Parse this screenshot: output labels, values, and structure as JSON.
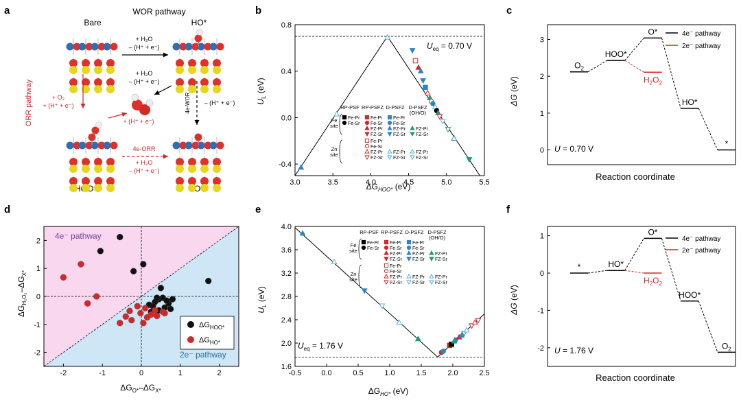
{
  "panels": {
    "a": "a",
    "b": "b",
    "c": "c",
    "d": "d",
    "e": "e",
    "f": "f"
  },
  "panel_a": {
    "bare": "Bare",
    "wor_pathway": "WOR pathway",
    "ho_star": "HO*",
    "orr_pathway": "ORR pathway",
    "hoo_star": "HOO*",
    "o_star": "O*",
    "step1_a": "+ H₂O",
    "step1_b": "– (H⁺ + e⁻)",
    "step2_a": "+ H₂O",
    "step2_b": "– (H⁺ + e⁻)",
    "orr_a": "+ O₂",
    "orr_b": "+ (H⁺ + e⁻)",
    "hplus": "+ (H⁺ + e⁻)",
    "wor4e": "4e-WOR",
    "wor4e_b": "– (H⁺ + e⁻)",
    "orr4e": "4e-ORR",
    "orr4e_a": "+ H₂O",
    "orr4e_b": "– (H⁺ + e⁻)"
  },
  "legend_common": {
    "cols": [
      "RP-PSF",
      "RP-PSFZ",
      "D-PSFZ",
      "D-PSFZ (OH/O)"
    ],
    "fe_site": "Fe site",
    "zn_site": "Zn site",
    "fe_pr": "Fe-Pr",
    "fe_sr": "Fe-Sr",
    "fz_pr": "FZ-Pr",
    "fz_sr": "FZ-Sr"
  },
  "chart_data": [
    {
      "id": "b",
      "type": "scatter",
      "title": "",
      "xlabel": "ΔG",
      "xlabel_sub": "HOO*",
      "xlabel_unit": "(eV)",
      "ylabel": "U",
      "ylabel_sub": "L",
      "ylabel_unit": "(eV)",
      "xlim": [
        3.0,
        5.5
      ],
      "ylim": [
        -0.5,
        0.8
      ],
      "xticks": [
        "3.0",
        "3.5",
        "4.0",
        "4.5",
        "5.0",
        "5.5"
      ],
      "xtick_vals": [
        3.0,
        3.5,
        4.0,
        4.5,
        5.0,
        5.5
      ],
      "yticks": [
        "-0.4",
        "0.0",
        "0.4",
        "0.8"
      ],
      "ytick_vals": [
        -0.4,
        0.0,
        0.4,
        0.8
      ],
      "annotation": "U",
      "annotation_sub": "eq",
      "annotation_val": " = 0.70 V",
      "ueq": 0.7,
      "lines": [
        [
          [
            3.0,
            -0.5
          ],
          [
            4.22,
            0.7
          ],
          [
            5.44,
            -0.5
          ]
        ]
      ],
      "points": [
        {
          "x": 3.08,
          "y": -0.43,
          "c": "#2e86c1",
          "m": "tri",
          "f": true
        },
        {
          "x": 3.55,
          "y": 0.03,
          "c": "#5dade2",
          "m": "tri",
          "f": false
        },
        {
          "x": 4.22,
          "y": 0.69,
          "c": "#5dade2",
          "m": "tri",
          "f": false
        },
        {
          "x": 4.55,
          "y": 0.58,
          "c": "#2e86c1",
          "m": "trid",
          "f": true
        },
        {
          "x": 4.59,
          "y": 0.49,
          "c": "#d62728",
          "m": "sq",
          "f": false
        },
        {
          "x": 4.63,
          "y": 0.43,
          "c": "#d62728",
          "m": "tri",
          "f": true
        },
        {
          "x": 4.66,
          "y": 0.4,
          "c": "#2e86c1",
          "m": "tri",
          "f": true
        },
        {
          "x": 4.69,
          "y": 0.32,
          "c": "#2e86c1",
          "m": "trid",
          "f": true
        },
        {
          "x": 4.72,
          "y": 0.26,
          "c": "#2e86c1",
          "m": "sq",
          "f": true
        },
        {
          "x": 4.75,
          "y": 0.21,
          "c": "#d62728",
          "m": "tri",
          "f": false
        },
        {
          "x": 4.78,
          "y": 0.17,
          "c": "#1a9c7a",
          "m": "tri",
          "f": true
        },
        {
          "x": 4.8,
          "y": 0.14,
          "c": "#d62728",
          "m": "circ",
          "f": false
        },
        {
          "x": 4.82,
          "y": 0.12,
          "c": "#2e86c1",
          "m": "circ",
          "f": true
        },
        {
          "x": 4.85,
          "y": 0.09,
          "c": "#5dade2",
          "m": "tri",
          "f": false
        },
        {
          "x": 4.87,
          "y": 0.06,
          "c": "#000",
          "m": "circ",
          "f": true
        },
        {
          "x": 4.89,
          "y": 0.04,
          "c": "#1a9c7a",
          "m": "tri",
          "f": true
        },
        {
          "x": 4.91,
          "y": 0.01,
          "c": "#d62728",
          "m": "trid",
          "f": false
        },
        {
          "x": 4.95,
          "y": -0.03,
          "c": "#5dade2",
          "m": "trid",
          "f": false
        },
        {
          "x": 5.02,
          "y": -0.1,
          "c": "#1a9c7a",
          "m": "trid",
          "f": false
        },
        {
          "x": 5.1,
          "y": -0.18,
          "c": "#2e86c1",
          "m": "tri",
          "f": false
        },
        {
          "x": 5.3,
          "y": -0.36,
          "c": "#1a9c7a",
          "m": "trid",
          "f": true
        }
      ]
    },
    {
      "id": "c",
      "type": "line",
      "title": "",
      "xlabel": "Reaction coordinate",
      "ylabel": "ΔG",
      "ylabel_unit": "(eV)",
      "ylim": [
        -0.4,
        3.4
      ],
      "yticks": [
        "0",
        "1",
        "2",
        "3"
      ],
      "ytick_vals": [
        0,
        1,
        2,
        3
      ],
      "annotation": "U",
      "annotation_val": " = 0.70 V",
      "legend": [
        "4e⁻ pathway",
        "2e⁻ pathway"
      ],
      "levels": [
        {
          "pos": 0,
          "y": 2.12,
          "label": "O",
          "label_sub": "2",
          "c": "#000"
        },
        {
          "pos": 1,
          "y": 2.43,
          "label": "HOO*",
          "c": "#000"
        },
        {
          "pos": 2,
          "y": 3.04,
          "label": "O*",
          "c": "#000"
        },
        {
          "pos": 2,
          "y": 2.11,
          "label": "H",
          "label_sub": "2",
          "label_rest": "O",
          "label_sub2": "2",
          "c": "#d62728"
        },
        {
          "pos": 3,
          "y": 1.13,
          "label": "HO*",
          "c": "#000"
        },
        {
          "pos": 4,
          "y": 0.0,
          "label": "*",
          "c": "#000"
        }
      ]
    },
    {
      "id": "d",
      "type": "scatter",
      "title": "",
      "xlabel": "ΔG",
      "xlabel_sub": "O*",
      "xlabel_mid": "–ΔG",
      "xlabel_sub2": "X*",
      "ylabel": "ΔG",
      "ylabel_sub": "H₂O₂",
      "ylabel_mid": "–ΔG",
      "ylabel_sub2": "X*",
      "xlim": [
        -2.5,
        2.5
      ],
      "ylim": [
        -2.5,
        2.5
      ],
      "xticks": [
        "-2",
        "-1",
        "0",
        "1",
        "2"
      ],
      "xtick_vals": [
        -2,
        -1,
        0,
        1,
        2
      ],
      "yticks": [
        "-2",
        "-1",
        "0",
        "1",
        "2"
      ],
      "ytick_vals": [
        -2,
        -1,
        0,
        1,
        2
      ],
      "region_top": "4e⁻ pathway",
      "region_bottom": "2e⁻ pathway",
      "legend": [
        "ΔG",
        "ΔG"
      ],
      "legend_subs": [
        "HOO*",
        "HO*"
      ],
      "series": [
        {
          "name": "HOO*",
          "color": "#111",
          "points": [
            [
              -0.55,
              2.12
            ],
            [
              -1.05,
              1.62
            ],
            [
              0.05,
              1.15
            ],
            [
              -0.2,
              0.9
            ],
            [
              1.72,
              0.55
            ],
            [
              0.5,
              0.3
            ],
            [
              0.45,
              -0.1
            ],
            [
              0.35,
              -0.2
            ],
            [
              0.55,
              -0.05
            ],
            [
              0.7,
              -0.25
            ],
            [
              0.3,
              -0.35
            ],
            [
              0.6,
              -0.4
            ],
            [
              0.2,
              -0.3
            ],
            [
              0.45,
              -0.5
            ],
            [
              0.75,
              -0.45
            ],
            [
              0.8,
              -0.1
            ],
            [
              0.4,
              -0.05
            ],
            [
              0.65,
              -0.15
            ],
            [
              0.25,
              -0.55
            ]
          ]
        },
        {
          "name": "HO*",
          "color": "#d62728",
          "points": [
            [
              -2.0,
              0.68
            ],
            [
              -1.55,
              1.15
            ],
            [
              -1.15,
              0.0
            ],
            [
              -1.38,
              -0.25
            ],
            [
              -0.3,
              -0.52
            ],
            [
              -0.55,
              -0.95
            ],
            [
              -0.25,
              -0.85
            ],
            [
              -0.4,
              -0.72
            ],
            [
              -0.02,
              -0.6
            ],
            [
              0.1,
              -0.42
            ],
            [
              0.15,
              -0.75
            ],
            [
              0.05,
              -0.95
            ],
            [
              0.25,
              -0.65
            ],
            [
              0.4,
              -0.7
            ],
            [
              0.55,
              -0.55
            ],
            [
              0.6,
              -0.6
            ],
            [
              0.35,
              -0.5
            ],
            [
              -0.1,
              -0.35
            ]
          ]
        }
      ]
    },
    {
      "id": "e",
      "type": "scatter",
      "title": "",
      "xlabel": "ΔG",
      "xlabel_sub": "HO*",
      "xlabel_unit": "(eV)",
      "ylabel": "U",
      "ylabel_sub": "L",
      "ylabel_unit": "(eV)",
      "xlim": [
        -0.5,
        2.5
      ],
      "ylim": [
        1.6,
        4.0
      ],
      "xticks": [
        "-0.5",
        "0.0",
        "0.5",
        "1.0",
        "1.5",
        "2.0",
        "2.5"
      ],
      "xtick_vals": [
        -0.5,
        0.0,
        0.5,
        1.0,
        1.5,
        2.0,
        2.5
      ],
      "yticks": [
        "1.6",
        "2.0",
        "2.4",
        "2.8",
        "3.2",
        "3.6",
        "4.0"
      ],
      "ytick_vals": [
        1.6,
        2.0,
        2.4,
        2.8,
        3.2,
        3.6,
        4.0
      ],
      "annotation": "U",
      "annotation_sub": "eq",
      "annotation_val": " = 1.76 V",
      "ueq": 1.76,
      "lines": [
        [
          [
            -0.5,
            3.98
          ],
          [
            1.76,
            1.76
          ],
          [
            2.5,
            2.5
          ]
        ]
      ],
      "points": [
        {
          "x": -0.38,
          "y": 3.88,
          "c": "#2e86c1",
          "m": "tri",
          "f": true
        },
        {
          "x": 0.12,
          "y": 3.39,
          "c": "#5dade2",
          "m": "tri",
          "f": false
        },
        {
          "x": 0.6,
          "y": 2.9,
          "c": "#2e86c1",
          "m": "trid",
          "f": true
        },
        {
          "x": 0.88,
          "y": 2.64,
          "c": "#5dade2",
          "m": "trid",
          "f": false
        },
        {
          "x": 1.15,
          "y": 2.35,
          "c": "#5dade2",
          "m": "tri",
          "f": false
        },
        {
          "x": 1.45,
          "y": 2.07,
          "c": "#1a9c7a",
          "m": "tri",
          "f": true
        },
        {
          "x": 1.82,
          "y": 1.84,
          "c": "#d62728",
          "m": "circ",
          "f": true
        },
        {
          "x": 1.85,
          "y": 1.86,
          "c": "#2e86c1",
          "m": "circ",
          "f": true
        },
        {
          "x": 1.95,
          "y": 1.96,
          "c": "#d62728",
          "m": "sq",
          "f": true
        },
        {
          "x": 1.98,
          "y": 1.98,
          "c": "#000",
          "m": "sq",
          "f": true
        },
        {
          "x": 2.02,
          "y": 2.03,
          "c": "#1a9c7a",
          "m": "tri",
          "f": true
        },
        {
          "x": 2.06,
          "y": 2.06,
          "c": "#2e86c1",
          "m": "trid",
          "f": true
        },
        {
          "x": 2.1,
          "y": 2.1,
          "c": "#d62728",
          "m": "tri",
          "f": true
        },
        {
          "x": 2.14,
          "y": 2.13,
          "c": "#2e86c1",
          "m": "tri",
          "f": true
        },
        {
          "x": 2.18,
          "y": 2.17,
          "c": "#1a9c7a",
          "m": "trid",
          "f": false
        },
        {
          "x": 2.22,
          "y": 2.22,
          "c": "#5dade2",
          "m": "tri",
          "f": false
        },
        {
          "x": 2.3,
          "y": 2.3,
          "c": "#d62728",
          "m": "trid",
          "f": false
        },
        {
          "x": 2.35,
          "y": 2.35,
          "c": "#d62728",
          "m": "tri",
          "f": false
        },
        {
          "x": 2.4,
          "y": 2.39,
          "c": "#d62728",
          "m": "trid",
          "f": false
        }
      ]
    },
    {
      "id": "f",
      "type": "line",
      "title": "",
      "xlabel": "Reaction coordinate",
      "ylabel": "ΔG",
      "ylabel_unit": "(eV)",
      "ylim": [
        -2.5,
        1.25
      ],
      "yticks": [
        "-2",
        "-1",
        "0",
        "1"
      ],
      "ytick_vals": [
        -2,
        -1,
        0,
        1
      ],
      "annotation": "U",
      "annotation_val": " = 1.76 V",
      "legend": [
        "4e⁻ pathway",
        "2e⁻ pathway"
      ],
      "levels": [
        {
          "pos": 0,
          "y": 0.0,
          "label": "*",
          "c": "#000"
        },
        {
          "pos": 1,
          "y": 0.07,
          "label": "HO*",
          "c": "#000"
        },
        {
          "pos": 2,
          "y": 0.93,
          "label": "O*",
          "c": "#000"
        },
        {
          "pos": 2,
          "y": 0.0,
          "label": "H",
          "label_sub": "2",
          "label_rest": "O",
          "label_sub2": "2",
          "c": "#d62728"
        },
        {
          "pos": 3,
          "y": -0.75,
          "label": "HOO*",
          "c": "#000"
        },
        {
          "pos": 4,
          "y": -2.12,
          "label": "O",
          "label_sub": "2",
          "c": "#000"
        }
      ]
    }
  ]
}
